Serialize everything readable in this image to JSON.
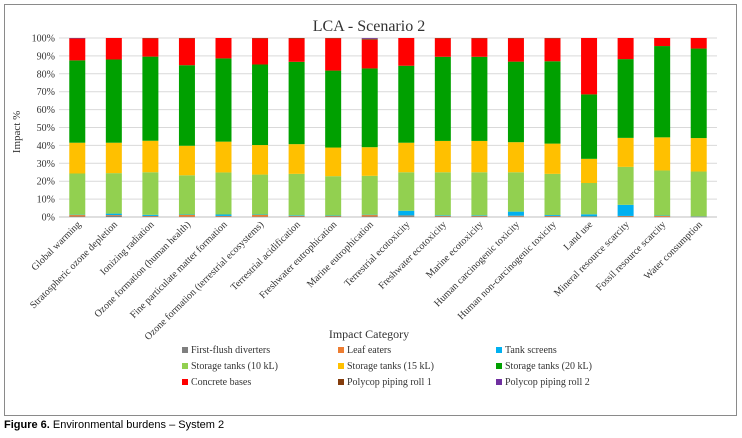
{
  "chart_data": {
    "type": "bar",
    "stacked": "percent",
    "title": "LCA - Scenario 2",
    "xlabel": "Impact Category",
    "ylabel": "Impact %",
    "ylim": [
      0,
      100
    ],
    "yticks": [
      "0%",
      "10%",
      "20%",
      "30%",
      "40%",
      "50%",
      "60%",
      "70%",
      "80%",
      "90%",
      "100%"
    ],
    "grid": true,
    "legend_position": "bottom",
    "categories": [
      "Global warming",
      "Stratospheric ozone depletion",
      "Ionizing radiation",
      "Ozone formation (human health)",
      "Fine particulate matter formation",
      "Ozone formation (terrestrial ecosystems)",
      "Terrestrial acidification",
      "Freshwater eutrophication",
      "Marine eutrophication",
      "Terrestrial ecotoxicity",
      "Freshwater ecotoxicity",
      "Marine ecotoxicity",
      "Human carcinogenic toxicity",
      "Human non-carcinogenic toxicity",
      "Land use",
      "Mineral resource scarcity",
      "Fossil resource scarcity",
      "Water consumption"
    ],
    "series": [
      {
        "name": "First-flush diverters",
        "color": "#7f7f7f",
        "values": [
          0.3,
          0.8,
          0.3,
          0.2,
          0.3,
          0.2,
          0.3,
          0.3,
          0.3,
          0.5,
          0.3,
          0.3,
          0.4,
          0.3,
          0.2,
          0.3,
          0.1,
          0.1
        ]
      },
      {
        "name": "Leaf eaters",
        "color": "#ed7d31",
        "values": [
          0.8,
          0.3,
          0.3,
          1.0,
          0.3,
          1.0,
          0.3,
          0.3,
          0.8,
          0.3,
          0.3,
          0.3,
          0.3,
          0.3,
          0.1,
          0.3,
          0.5,
          0.2
        ]
      },
      {
        "name": "Tank screens",
        "color": "#00b0f0",
        "values": [
          0.2,
          0.8,
          0.6,
          0.2,
          0.8,
          0.2,
          0.3,
          0.2,
          0.2,
          2.7,
          0.3,
          0.3,
          2.3,
          0.5,
          1.2,
          6.2,
          0.2,
          0.1
        ]
      },
      {
        "name": "Storage tanks (10 kL)",
        "color": "#92d050",
        "values": [
          23.0,
          22.6,
          23.8,
          21.9,
          23.5,
          22.3,
          23.2,
          22.0,
          21.7,
          21.5,
          24.1,
          24.1,
          22.0,
          23.0,
          17.5,
          21.2,
          25.2,
          25.0
        ]
      },
      {
        "name": "Storage tanks (15 kL)",
        "color": "#ffc000",
        "values": [
          17.2,
          17.0,
          17.6,
          16.5,
          17.2,
          16.5,
          16.6,
          16.0,
          16.0,
          16.5,
          17.5,
          17.5,
          16.8,
          16.9,
          13.5,
          16.2,
          18.5,
          18.7
        ]
      },
      {
        "name": "Storage tanks (20 kL)",
        "color": "#00a000",
        "values": [
          46.0,
          46.5,
          47.0,
          45.0,
          46.5,
          45.0,
          46.0,
          43.0,
          44.0,
          43.0,
          47.0,
          47.0,
          45.0,
          46.0,
          36.0,
          44.0,
          51.0,
          50.0
        ]
      },
      {
        "name": "Concrete bases",
        "color": "#ff0000",
        "values": [
          12.2,
          12.0,
          10.2,
          15.0,
          11.4,
          14.6,
          13.0,
          18.0,
          16.0,
          15.5,
          10.3,
          10.3,
          13.0,
          12.8,
          31.5,
          11.8,
          4.5,
          5.9
        ]
      },
      {
        "name": "Polycop piping roll 1",
        "color": "#843c0c",
        "values": [
          0.2,
          0.0,
          0.2,
          0.2,
          0.0,
          0.2,
          0.3,
          0.2,
          0.6,
          0.0,
          0.2,
          0.2,
          0.2,
          0.2,
          0.0,
          0.0,
          0.0,
          0.0
        ]
      },
      {
        "name": "Polycop piping roll 2",
        "color": "#7030a0",
        "values": [
          0.1,
          0.0,
          0.0,
          0.0,
          0.0,
          0.0,
          0.0,
          0.0,
          0.4,
          0.0,
          0.0,
          0.0,
          0.0,
          0.0,
          0.0,
          0.0,
          0.0,
          0.0
        ]
      }
    ]
  },
  "caption": {
    "label": "Figure 6.",
    "text": " Environmental burdens – System 2"
  }
}
